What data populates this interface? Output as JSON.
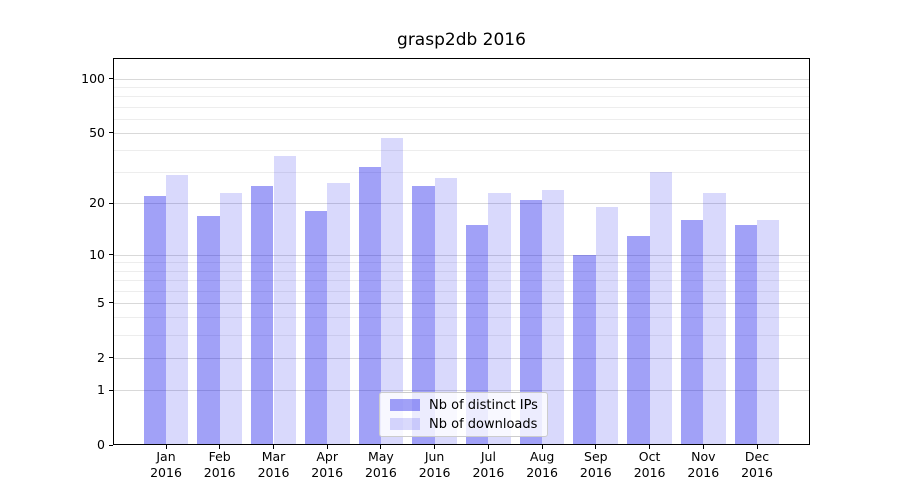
{
  "title": "grasp2db 2016",
  "legend": {
    "items": [
      {
        "label": "Nb of distinct IPs"
      },
      {
        "label": "Nb of downloads"
      }
    ]
  },
  "colors": {
    "bar_distinct_ips_rgba": "rgba(20,20,235,0.4)",
    "bar_downloads_rgba": "rgba(20,20,235,0.16)",
    "bar_distinct_ips_hex": "#a1a1f7",
    "bar_downloads_hex": "#dcdcfc",
    "major_gridline": "#d9d9d9",
    "minor_gridline": "#ededed",
    "axis": "#000000",
    "legend_border": "#cccccc"
  },
  "chart_data": {
    "type": "bar",
    "title": "grasp2db 2016",
    "categories": [
      "Jan 2016",
      "Feb 2016",
      "Mar 2016",
      "Apr 2016",
      "May 2016",
      "Jun 2016",
      "Jul 2016",
      "Aug 2016",
      "Sep 2016",
      "Oct 2016",
      "Nov 2016",
      "Dec 2016"
    ],
    "month_labels": [
      "Jan",
      "Feb",
      "Mar",
      "Apr",
      "May",
      "Jun",
      "Jul",
      "Aug",
      "Sep",
      "Oct",
      "Nov",
      "Dec"
    ],
    "year_label": "2016",
    "series": [
      {
        "name": "Nb of distinct IPs",
        "values": [
          22,
          17,
          25,
          18,
          32,
          25,
          15,
          21,
          10,
          13,
          16,
          15
        ]
      },
      {
        "name": "Nb of downloads",
        "values": [
          29,
          23,
          37,
          26,
          47,
          28,
          23,
          24,
          19,
          30,
          23,
          16
        ]
      }
    ],
    "yscale": "log1p",
    "y_ticks": [
      0,
      1,
      2,
      5,
      10,
      20,
      50,
      100
    ],
    "y_minor_ticks": [
      3,
      4,
      6,
      7,
      8,
      9,
      30,
      40,
      60,
      70,
      80,
      90
    ],
    "ylim": [
      0,
      130
    ],
    "xlabel": "",
    "ylabel": "",
    "grid": true,
    "legend_position": "lower center"
  }
}
